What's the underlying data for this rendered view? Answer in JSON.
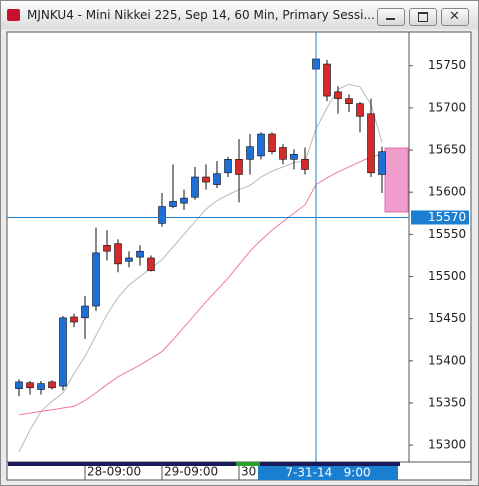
{
  "window": {
    "title": "MJNKU4 - Mini Nikkei 225, Sep 14, 60 Min, Primary Sessi..."
  },
  "chart_data": {
    "type": "candlestick",
    "open": [
      15367,
      15374,
      15366,
      15375,
      15370,
      15452,
      15451,
      15465,
      15537,
      15539,
      15518,
      15523,
      15522,
      15563,
      15583,
      15587,
      15594,
      15618,
      15609,
      15623,
      15639,
      15639,
      15643,
      15669,
      15653,
      15639,
      15639,
      15746,
      15752,
      15719,
      15711,
      15705,
      15693,
      15621
    ],
    "high": [
      15378,
      15376,
      15376,
      15377,
      15453,
      15456,
      15477,
      15558,
      15555,
      15544,
      15530,
      15537,
      15525,
      15599,
      15633,
      15603,
      15630,
      15633,
      15637,
      15642,
      15663,
      15669,
      15671,
      15671,
      15657,
      15651,
      15653,
      15762,
      15757,
      15726,
      15716,
      15707,
      15711,
      15654
    ],
    "low": [
      15358,
      15360,
      15360,
      15366,
      15365,
      15440,
      15426,
      15459,
      15519,
      15505,
      15511,
      15513,
      15506,
      15559,
      15581,
      15579,
      15591,
      15603,
      15605,
      15618,
      15588,
      15621,
      15639,
      15645,
      15633,
      15627,
      15621,
      15738,
      15708,
      15693,
      15695,
      15671,
      15618,
      15599
    ],
    "close": [
      15375,
      15368,
      15373,
      15368,
      15451,
      15446,
      15465,
      15528,
      15530,
      15515,
      15522,
      15530,
      15507,
      15583,
      15589,
      15593,
      15618,
      15612,
      15622,
      15639,
      15621,
      15654,
      15669,
      15648,
      15639,
      15645,
      15627,
      15758,
      15714,
      15711,
      15705,
      15690,
      15623,
      15648
    ],
    "up_color": "#1f6fd8",
    "down_color": "#d42a2a",
    "series": [
      {
        "color": "#b8b8b8",
        "values": [
          15292,
          15318,
          15340,
          15352,
          15362,
          15385,
          15405,
          15430,
          15455,
          15475,
          15490,
          15500,
          15510,
          15520,
          15535,
          15550,
          15565,
          15580,
          15590,
          15597,
          15603,
          15608,
          15618,
          15625,
          15630,
          15635,
          15637,
          15675,
          15700,
          15722,
          15728,
          15725,
          15704,
          15659
        ]
      },
      {
        "color": "#f07aa0",
        "values": [
          15336,
          15338,
          15340,
          15342,
          15344,
          15346,
          15353,
          15362,
          15372,
          15381,
          15388,
          15395,
          15403,
          15411,
          15425,
          15440,
          15455,
          15470,
          15484,
          15498,
          15514,
          15530,
          15543,
          15555,
          15565,
          15575,
          15585,
          15609,
          15617,
          15624,
          15630,
          15636,
          15642,
          15645
        ]
      }
    ],
    "ylim": [
      15280,
      15790
    ],
    "yticks": [
      15300,
      15350,
      15400,
      15450,
      15500,
      15550,
      15600,
      15650,
      15700,
      15750
    ],
    "xticks": [
      {
        "value": 6,
        "label": "28-09:00"
      },
      {
        "value": 13,
        "label": "29-09:00"
      },
      {
        "value": 20,
        "label": "30"
      }
    ],
    "crosshair": {
      "index": 27,
      "price": 15570,
      "time": "7-31-14   9:00"
    }
  }
}
